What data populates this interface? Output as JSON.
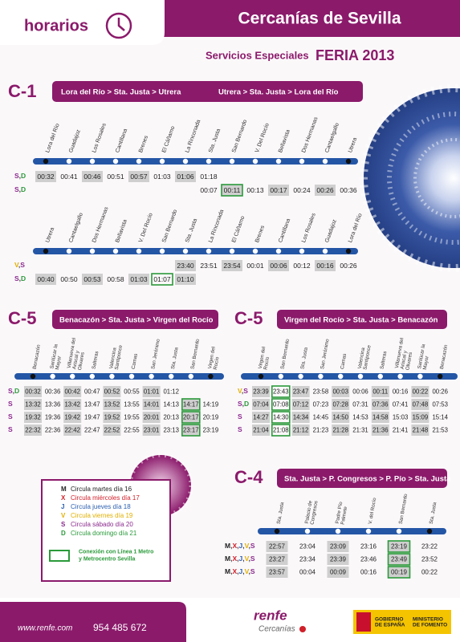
{
  "header": {
    "tab": "horarios",
    "title": "Cercanías de Sevilla",
    "subtitle": "Servicios Especiales",
    "event": "FERIA 2013"
  },
  "sections": [
    {
      "line": "C-1",
      "routes": [
        "Lora del Río > Sta. Justa > Utrera",
        "Utrera > Sta. Justa > Lora del Río"
      ],
      "blocks": [
        {
          "stations": [
            "Lora del Río",
            "Guadajoz",
            "Los Rosales",
            "Cantillana",
            "Brenes",
            "El Cáñamo",
            "La Rinconada",
            "Sta. Justa",
            "San Bernardo",
            "V. Del Rocío",
            "Bellavista",
            "Dos Hermanas",
            "Cantaelgallo",
            "Utrera"
          ],
          "rows": [
            {
              "days": "S,D",
              "times": [
                "00:32",
                "00:41",
                "00:46",
                "00:51",
                "00:57",
                "01:03",
                "01:06",
                "01:18",
                null,
                null,
                null,
                null,
                null,
                null
              ]
            },
            {
              "days": "S,D",
              "times": [
                null,
                null,
                null,
                null,
                null,
                null,
                null,
                "00:07",
                {
                  "time": "00:11",
                  "metro": true
                },
                "00:13",
                "00:17",
                "00:24",
                "00:26",
                "00:36"
              ]
            }
          ]
        },
        {
          "stations": [
            "Utrera",
            "Cantaelgallo",
            "Dos Hermanas",
            "Bellavista",
            "V. Del Rocío",
            "San Bernardo",
            "Sta. Justa",
            "La Rinconada",
            "El Cáñamo",
            "Brenes",
            "Cantillana",
            "Los Rosales",
            "Guadajoz",
            "Lora del Río"
          ],
          "rows": [
            {
              "days": "V,S",
              "times": [
                null,
                null,
                null,
                null,
                null,
                null,
                "23:40",
                "23:51",
                "23:54",
                "00:01",
                "00:06",
                "00:12",
                "00:16",
                "00:26"
              ]
            },
            {
              "days": "S,D",
              "times": [
                "00:40",
                "00:50",
                "00:53",
                "00:58",
                "01:03",
                {
                  "time": "01:07",
                  "metro": true
                },
                "01:10",
                null,
                null,
                null,
                null,
                null,
                null,
                null
              ]
            }
          ]
        }
      ]
    },
    {
      "line": "C-5",
      "routes": [
        "Benacazón > Sta. Justa > Virgen del Rocío"
      ],
      "blocks": [
        {
          "stations": [
            "Benacazón",
            "Sanlúcar la Mayor",
            "Villanueva del Ariscal y Olivares",
            "Salteras",
            "Valencina Santiponce",
            "Camas",
            "San Jerónimo",
            "Sta. Justa",
            "San Bernardo",
            "Virgen del Rocío"
          ],
          "rows": [
            {
              "days": "S,D",
              "times": [
                "00:32",
                "00:36",
                "00:42",
                "00:47",
                "00:52",
                "00:55",
                "01:01",
                "01:12",
                null,
                null
              ]
            },
            {
              "days": "S",
              "times": [
                "13:32",
                "13:36",
                "13:42",
                "13:47",
                "13:52",
                "13:55",
                "14:01",
                "14:13",
                {
                  "time": "14:17",
                  "metro": true
                },
                "14:19"
              ]
            },
            {
              "days": "S",
              "times": [
                "19:32",
                "19:36",
                "19:42",
                "19:47",
                "19:52",
                "19:55",
                "20:01",
                "20:13",
                {
                  "time": "20:17",
                  "metro": true
                },
                "20:19"
              ]
            },
            {
              "days": "S",
              "times": [
                "22:32",
                "22:36",
                "22:42",
                "22:47",
                "22:52",
                "22:55",
                "23:01",
                "23:13",
                {
                  "time": "23:17",
                  "metro": true
                },
                "23:19"
              ]
            }
          ]
        }
      ]
    },
    {
      "line": "C-5",
      "routes": [
        "Virgen del Rocío > Sta. Justa > Benacazón"
      ],
      "blocks": [
        {
          "stations": [
            "Virgen del Rocío",
            "San Bernardo",
            "Sta. Justa",
            "San Jerónimo",
            "Camas",
            "Valencina Santiponce",
            "Salteras",
            "Villanueva del Ariscal y Olivares",
            "Sanlúcar la Mayor",
            "Benacazón"
          ],
          "rows": [
            {
              "days": "V,S",
              "times": [
                "23:39",
                {
                  "time": "23:43",
                  "metro": true
                },
                "23:47",
                "23:58",
                "00:03",
                "00:06",
                "00:11",
                "00:16",
                "00:22",
                "00:26"
              ]
            },
            {
              "days": "S,D",
              "times": [
                "07:04",
                {
                  "time": "07:08",
                  "metro": true
                },
                "07:12",
                "07:23",
                "07:28",
                "07:31",
                "07:36",
                "07:41",
                "07:48",
                "07:53"
              ]
            },
            {
              "days": "S",
              "times": [
                "14:27",
                {
                  "time": "14:30",
                  "metro": true
                },
                "14:34",
                "14:45",
                "14:50",
                "14:53",
                "14:58",
                "15:03",
                "15:09",
                "15:14"
              ]
            },
            {
              "days": "S",
              "times": [
                "21:04",
                {
                  "time": "21:08",
                  "metro": true
                },
                "21:12",
                "21:23",
                "21:28",
                "21:31",
                "21:36",
                "21:41",
                "21:48",
                "21:53"
              ]
            }
          ]
        }
      ]
    },
    {
      "line": "C-4",
      "routes": [
        "Sta. Justa > P. Congresos > P. Pío > Sta. Justa"
      ],
      "blocks": [
        {
          "stations": [
            "Sta. Justa",
            "Palacio de Congresos",
            "Padre Pío Palmete",
            "V. del Rocío",
            "San Bernardo",
            "Sta. Justa"
          ],
          "rows": [
            {
              "days": "M,X,J,V,S",
              "times": [
                "22:57",
                "23:04",
                "23:09",
                "23:16",
                {
                  "time": "23:19",
                  "metro": true
                },
                "23:22"
              ]
            },
            {
              "days": "M,X,J,V,S",
              "times": [
                "23:27",
                "23:34",
                "23:39",
                "23:46",
                {
                  "time": "23:49",
                  "metro": true
                },
                "23:52"
              ]
            },
            {
              "days": "M,X,J,V,S",
              "times": [
                "23:57",
                "00:04",
                "00:09",
                "00:16",
                {
                  "time": "00:19",
                  "metro": true
                },
                "00:22"
              ]
            }
          ]
        }
      ]
    }
  ],
  "legend": {
    "items": [
      {
        "code": "M",
        "text": "Circula martes día 16",
        "color": "#222222"
      },
      {
        "code": "X",
        "text": "Circula miércoles día 17",
        "color": "#d0202a"
      },
      {
        "code": "J",
        "text": "Circula jueves día 18",
        "color": "#2c5fb0"
      },
      {
        "code": "V",
        "text": "Circula viernes día 19",
        "color": "#e0b000"
      },
      {
        "code": "S",
        "text": "Circula sábado día 20",
        "color": "#8b2a8e"
      },
      {
        "code": "D",
        "text": "Circula domingo día 21",
        "color": "#2a9a3a"
      }
    ],
    "connection": "Conexión con Línea 1 Metro y Metrocentro Sevilla"
  },
  "footer": {
    "website": "www.renfe.com",
    "phone": "954 485 672",
    "brand": "renfe",
    "service": "Cercanías",
    "government": "GOBIERNO DE ESPAÑA",
    "ministry": "MINISTERIO DE FOMENTO"
  }
}
